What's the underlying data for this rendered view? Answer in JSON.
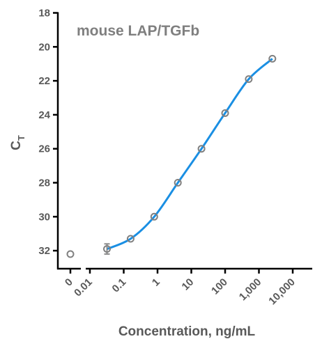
{
  "chart_data": {
    "type": "scatter",
    "title": "mouse LAP/TGFb",
    "xlabel": "Concentration, ng/mL",
    "ylabel": "C",
    "ylabel_sub": "T",
    "x_scale": "log",
    "x_ticks": [
      "0",
      "0.01",
      "0.1",
      "1",
      "10",
      "100",
      "1,000",
      "10,000"
    ],
    "x_tick_values": [
      0.01,
      0.1,
      1,
      10,
      100,
      1000,
      10000
    ],
    "y_ticks": [
      "18",
      "20",
      "22",
      "24",
      "26",
      "28",
      "30",
      "32"
    ],
    "y_tick_values": [
      18,
      20,
      22,
      24,
      26,
      28,
      30,
      32
    ],
    "ylim": [
      33,
      18
    ],
    "y_inverted": true,
    "xlim": [
      0.01,
      10000
    ],
    "zero_point": {
      "x": 0,
      "y": 32.2
    },
    "series": [
      {
        "x": [
          0.032,
          0.16,
          0.8,
          4,
          20,
          100,
          500,
          2500
        ],
        "y": [
          31.9,
          31.3,
          30.0,
          28.0,
          26.0,
          23.9,
          21.9,
          20.7
        ],
        "yerr": [
          0.3,
          0,
          0,
          0,
          0,
          0,
          0,
          0
        ]
      }
    ],
    "fit_curve": true,
    "grid": false
  }
}
